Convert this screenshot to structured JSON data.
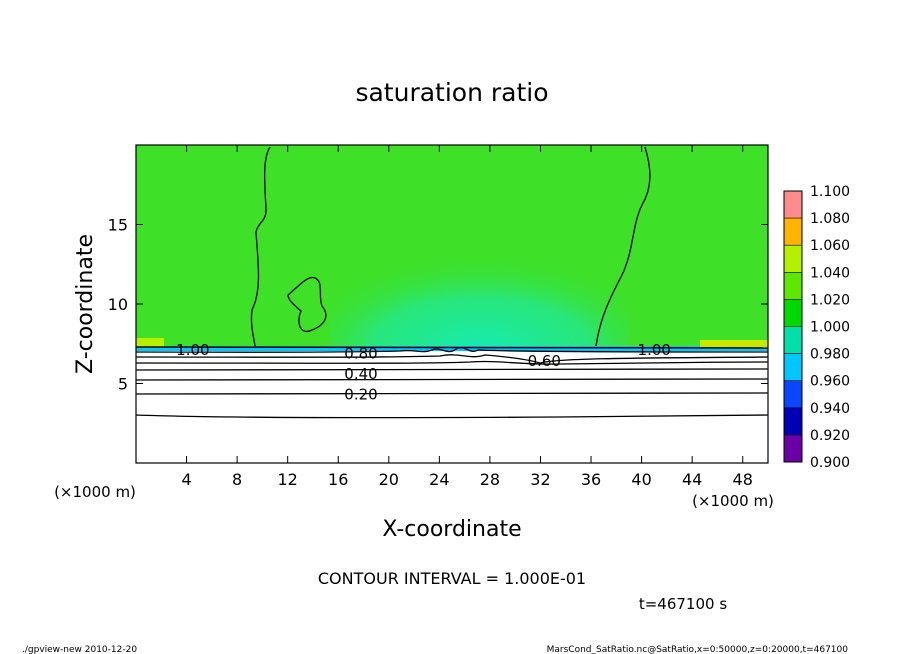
{
  "chart_data": {
    "type": "heatmap",
    "title": "saturation ratio",
    "xlabel": "X-coordinate",
    "ylabel": "Z-coordinate",
    "x_unit_label": "(×1000 m)",
    "y_unit_label": "(×1000 m)",
    "xlim": [
      0,
      50
    ],
    "ylim": [
      0,
      20
    ],
    "x_ticks": [
      "4",
      "8",
      "12",
      "16",
      "20",
      "24",
      "28",
      "32",
      "36",
      "40",
      "44",
      "48"
    ],
    "y_ticks": [
      "5",
      "10",
      "15"
    ],
    "colorbar": {
      "levels": [
        "0.900",
        "0.920",
        "0.940",
        "0.960",
        "0.980",
        "1.000",
        "1.020",
        "1.040",
        "1.060",
        "1.080",
        "1.100"
      ],
      "colors": [
        "#6a00a8",
        "#0000b4",
        "#0a46ff",
        "#00c8ff",
        "#00e0a8",
        "#00d800",
        "#5ee800",
        "#b4f000",
        "#ffb400",
        "#ff3c00",
        "#ff8c8c"
      ]
    },
    "contour_labels": [
      {
        "text": "1.00",
        "x": 4.5,
        "z": 7.1
      },
      {
        "text": "1.00",
        "x": 41.0,
        "z": 7.1
      },
      {
        "text": "0.80",
        "x": 17.8,
        "z": 6.9
      },
      {
        "text": "0.60",
        "x": 32.3,
        "z": 6.4
      },
      {
        "text": "0.40",
        "x": 17.8,
        "z": 5.6
      },
      {
        "text": "0.20",
        "x": 17.8,
        "z": 4.3
      }
    ],
    "contour_interval_text": "CONTOUR INTERVAL = 1.000E-01",
    "time_text": "t=467100 s"
  },
  "footer": {
    "left": "./gpview-new   2010-12-20",
    "right": "MarsCond_SatRatio.nc@SatRatio,x=0:50000,z=0:20000,t=467100"
  },
  "colors": {
    "region_upper": "#3ee028",
    "region_center": "#1ee89a",
    "region_bottom": "#ffffff",
    "boundary_band": "#00c8ff"
  }
}
